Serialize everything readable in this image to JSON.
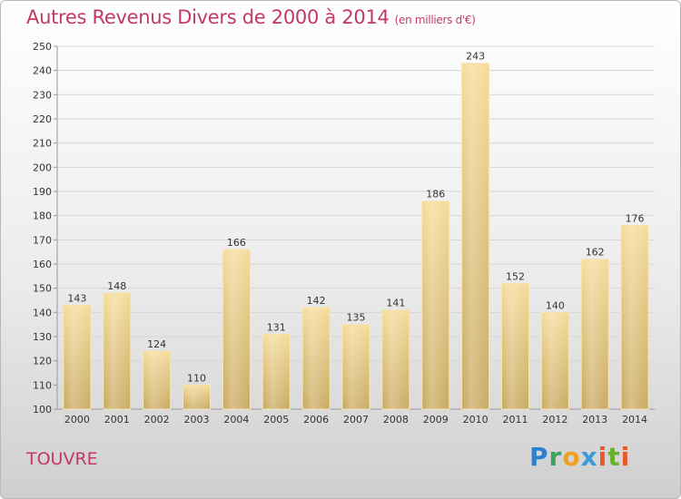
{
  "chart_data": {
    "type": "bar",
    "title": "Autres Revenus Divers de 2000 à 2014",
    "subtitle": "(en milliers d'€)",
    "categories": [
      "2000",
      "2001",
      "2002",
      "2003",
      "2004",
      "2005",
      "2006",
      "2007",
      "2008",
      "2009",
      "2010",
      "2011",
      "2012",
      "2013",
      "2014"
    ],
    "values": [
      143,
      148,
      124,
      110,
      166,
      131,
      142,
      135,
      141,
      186,
      243,
      152,
      140,
      162,
      176
    ],
    "ylim": [
      100,
      250
    ],
    "yticks": [
      100,
      110,
      120,
      130,
      140,
      150,
      160,
      170,
      180,
      190,
      200,
      210,
      220,
      230,
      240,
      250
    ],
    "grid": true,
    "bar_color": "#e9cc84",
    "title_color": "#c23a62"
  },
  "place": "TOUVRE",
  "logo": {
    "letters": [
      "P",
      "r",
      "o",
      "x",
      "i",
      "t",
      "i"
    ]
  }
}
